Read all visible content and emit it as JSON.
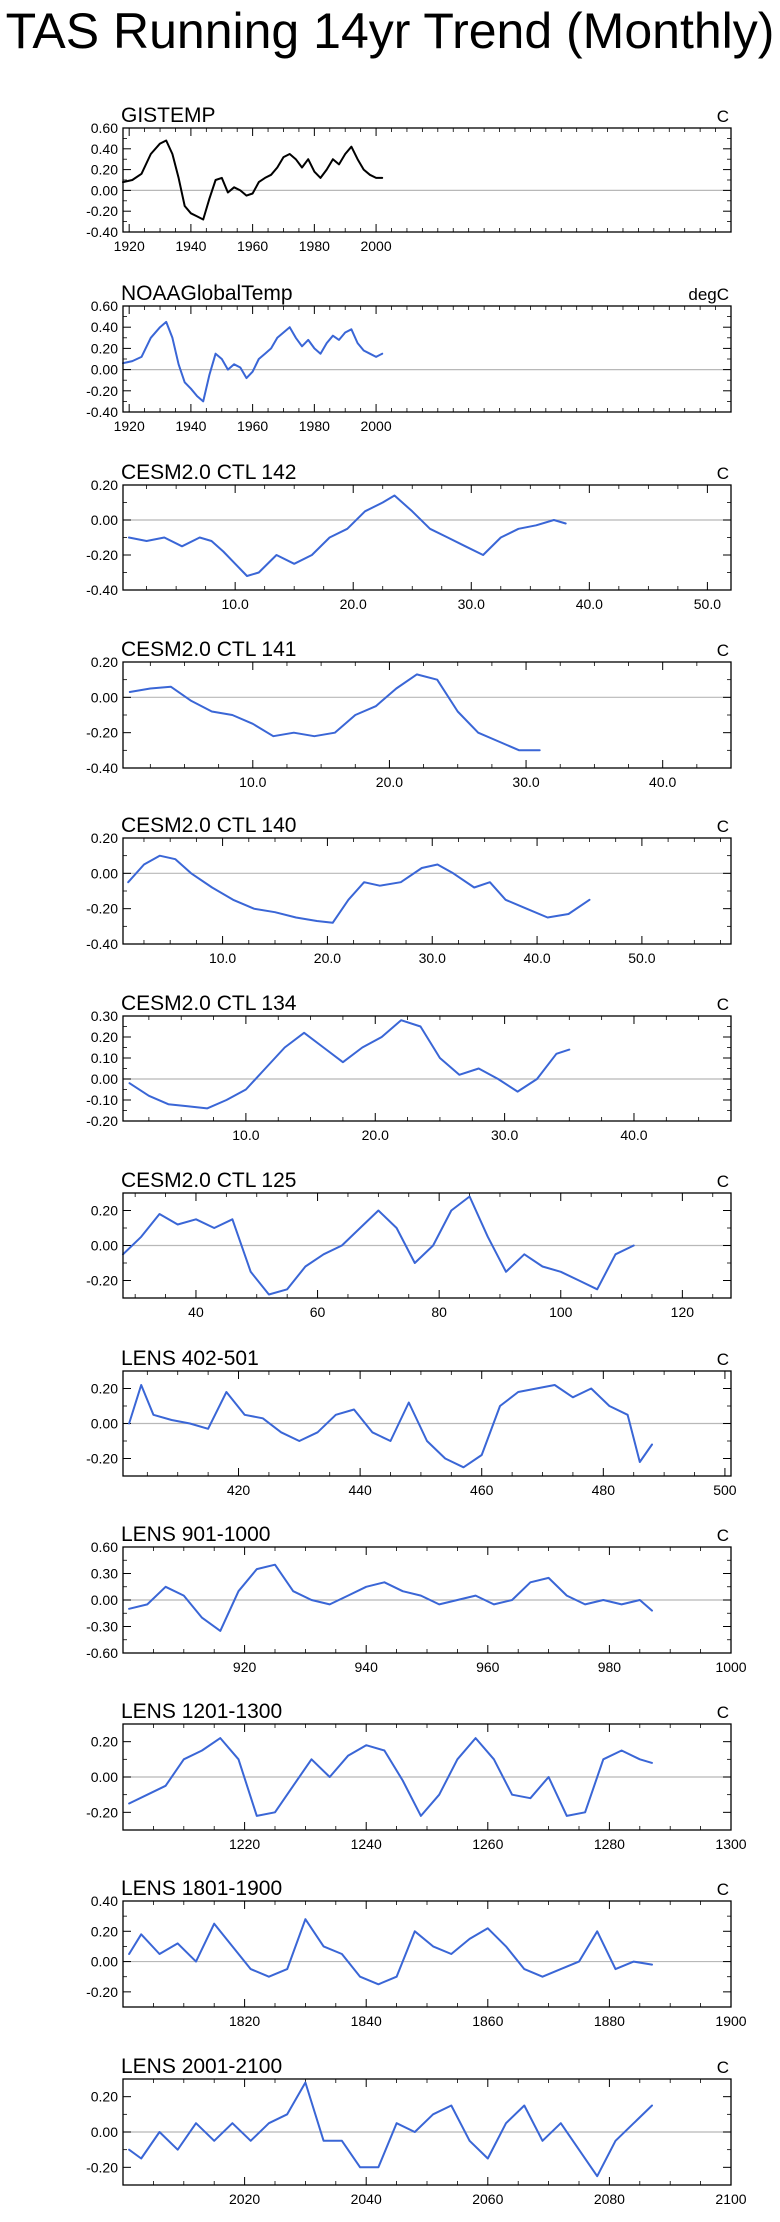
{
  "page": {
    "title": "TAS Running 14yr Trend (Monthly)"
  },
  "chart_data": [
    {
      "type": "line",
      "title": "GISTEMP",
      "units": "C",
      "color": "#000000",
      "xlim": [
        1918,
        2115
      ],
      "xticks": [
        1920,
        1940,
        1960,
        1980,
        2000
      ],
      "xtick_labels": [
        "1920",
        "1940",
        "1960",
        "1980",
        "2000"
      ],
      "ylim": [
        -0.4,
        0.6
      ],
      "yticks": [
        -0.4,
        -0.2,
        0,
        0.2,
        0.4,
        0.6
      ],
      "ytick_labels": [
        "-0.40",
        "-0.20",
        "0.00",
        "0.20",
        "0.40",
        "0.60"
      ],
      "x": [
        1918,
        1921,
        1924,
        1927,
        1930,
        1932,
        1934,
        1936,
        1938,
        1940,
        1942,
        1944,
        1946,
        1948,
        1950,
        1952,
        1954,
        1956,
        1958,
        1960,
        1962,
        1964,
        1966,
        1968,
        1970,
        1972,
        1974,
        1976,
        1978,
        1980,
        1982,
        1984,
        1986,
        1988,
        1990,
        1992,
        1994,
        1996,
        1998,
        2000,
        2002
      ],
      "y": [
        0.08,
        0.1,
        0.16,
        0.35,
        0.45,
        0.48,
        0.35,
        0.12,
        -0.15,
        -0.22,
        -0.25,
        -0.28,
        -0.08,
        0.1,
        0.12,
        -0.02,
        0.03,
        0.0,
        -0.05,
        -0.03,
        0.08,
        0.12,
        0.15,
        0.22,
        0.32,
        0.35,
        0.3,
        0.22,
        0.3,
        0.18,
        0.12,
        0.2,
        0.3,
        0.25,
        0.35,
        0.42,
        0.3,
        0.2,
        0.15,
        0.12,
        0.12
      ]
    },
    {
      "type": "line",
      "title": "NOAAGlobalTemp",
      "units": "degC",
      "color": "#3a66d6",
      "xlim": [
        1918,
        2115
      ],
      "xticks": [
        1920,
        1940,
        1960,
        1980,
        2000
      ],
      "xtick_labels": [
        "1920",
        "1940",
        "1960",
        "1980",
        "2000"
      ],
      "ylim": [
        -0.4,
        0.6
      ],
      "yticks": [
        -0.4,
        -0.2,
        0,
        0.2,
        0.4,
        0.6
      ],
      "ytick_labels": [
        "-0.40",
        "-0.20",
        "0.00",
        "0.20",
        "0.40",
        "0.60"
      ],
      "x": [
        1918,
        1921,
        1924,
        1927,
        1930,
        1932,
        1934,
        1936,
        1938,
        1940,
        1942,
        1944,
        1946,
        1948,
        1950,
        1952,
        1954,
        1956,
        1958,
        1960,
        1962,
        1964,
        1966,
        1968,
        1970,
        1972,
        1974,
        1976,
        1978,
        1980,
        1982,
        1984,
        1986,
        1988,
        1990,
        1992,
        1994,
        1996,
        1998,
        2000,
        2002
      ],
      "y": [
        0.06,
        0.08,
        0.12,
        0.3,
        0.4,
        0.45,
        0.3,
        0.05,
        -0.12,
        -0.18,
        -0.25,
        -0.3,
        -0.05,
        0.15,
        0.1,
        0.0,
        0.05,
        0.02,
        -0.08,
        -0.02,
        0.1,
        0.15,
        0.2,
        0.3,
        0.35,
        0.4,
        0.3,
        0.22,
        0.28,
        0.2,
        0.15,
        0.25,
        0.32,
        0.28,
        0.35,
        0.38,
        0.25,
        0.18,
        0.15,
        0.12,
        0.15
      ]
    },
    {
      "type": "line",
      "title": "CESM2.0 CTL 142",
      "units": "C",
      "color": "#3a66d6",
      "xlim": [
        0.5,
        52
      ],
      "xticks": [
        10,
        20,
        30,
        40,
        50
      ],
      "xtick_labels": [
        "10.0",
        "20.0",
        "30.0",
        "40.0",
        "50.0"
      ],
      "ylim": [
        -0.4,
        0.2
      ],
      "yticks": [
        -0.4,
        -0.2,
        0,
        0.2
      ],
      "ytick_labels": [
        "-0.40",
        "-0.20",
        "0.00",
        "0.20"
      ],
      "x": [
        1,
        2.5,
        4,
        5.5,
        7,
        8,
        9,
        10,
        11,
        12,
        13.5,
        15,
        16.5,
        18,
        19.5,
        21,
        22.5,
        23.5,
        25,
        26.5,
        28,
        29.5,
        31,
        32.5,
        34,
        35.5,
        37,
        38
      ],
      "y": [
        -0.1,
        -0.12,
        -0.1,
        -0.15,
        -0.1,
        -0.12,
        -0.18,
        -0.25,
        -0.32,
        -0.3,
        -0.2,
        -0.25,
        -0.2,
        -0.1,
        -0.05,
        0.05,
        0.1,
        0.14,
        0.05,
        -0.05,
        -0.1,
        -0.15,
        -0.2,
        -0.1,
        -0.05,
        -0.03,
        0.0,
        -0.02
      ]
    },
    {
      "type": "line",
      "title": "CESM2.0 CTL 141",
      "units": "C",
      "color": "#3a66d6",
      "xlim": [
        0.5,
        45
      ],
      "xticks": [
        10,
        20,
        30,
        40
      ],
      "xtick_labels": [
        "10.0",
        "20.0",
        "30.0",
        "40.0"
      ],
      "ylim": [
        -0.4,
        0.2
      ],
      "yticks": [
        -0.4,
        -0.2,
        0,
        0.2
      ],
      "ytick_labels": [
        "-0.40",
        "-0.20",
        "0.00",
        "0.20"
      ],
      "x": [
        1,
        2.5,
        4,
        5.5,
        7,
        8.5,
        10,
        11.5,
        13,
        14.5,
        16,
        17.5,
        19,
        20.5,
        22,
        23.5,
        25,
        26.5,
        28,
        29.5,
        31
      ],
      "y": [
        0.03,
        0.05,
        0.06,
        -0.02,
        -0.08,
        -0.1,
        -0.15,
        -0.22,
        -0.2,
        -0.22,
        -0.2,
        -0.1,
        -0.05,
        0.05,
        0.13,
        0.1,
        -0.08,
        -0.2,
        -0.25,
        -0.3,
        -0.3
      ]
    },
    {
      "type": "line",
      "title": "CESM2.0 CTL 140",
      "units": "C",
      "color": "#3a66d6",
      "xlim": [
        0.5,
        58.5
      ],
      "xticks": [
        10,
        20,
        30,
        40,
        50
      ],
      "xtick_labels": [
        "10.0",
        "20.0",
        "30.0",
        "40.0",
        "50.0"
      ],
      "ylim": [
        -0.4,
        0.2
      ],
      "yticks": [
        -0.4,
        -0.2,
        0,
        0.2
      ],
      "ytick_labels": [
        "-0.40",
        "-0.20",
        "0.00",
        "0.20"
      ],
      "x": [
        1,
        2.5,
        4,
        5.5,
        7,
        9,
        11,
        13,
        15,
        17,
        19,
        20.5,
        22,
        23.5,
        25,
        27,
        29,
        30.5,
        32,
        34,
        35.5,
        37,
        39,
        41,
        43,
        45
      ],
      "y": [
        -0.05,
        0.05,
        0.1,
        0.08,
        0.0,
        -0.08,
        -0.15,
        -0.2,
        -0.22,
        -0.25,
        -0.27,
        -0.28,
        -0.15,
        -0.05,
        -0.07,
        -0.05,
        0.03,
        0.05,
        0.0,
        -0.08,
        -0.05,
        -0.15,
        -0.2,
        -0.25,
        -0.23,
        -0.15
      ]
    },
    {
      "type": "line",
      "title": "CESM2.0 CTL 134",
      "units": "C",
      "color": "#3a66d6",
      "xlim": [
        0.5,
        47.5
      ],
      "xticks": [
        10,
        20,
        30,
        40
      ],
      "xtick_labels": [
        "10.0",
        "20.0",
        "30.0",
        "40.0"
      ],
      "ylim": [
        -0.2,
        0.3
      ],
      "yticks": [
        -0.2,
        -0.1,
        0,
        0.1,
        0.2,
        0.3
      ],
      "ytick_labels": [
        "-0.20",
        "-0.10",
        "0.00",
        "0.10",
        "0.20",
        "0.30"
      ],
      "x": [
        1,
        2.5,
        4,
        5.5,
        7,
        8.5,
        10,
        11.5,
        13,
        14.5,
        16,
        17.5,
        19,
        20.5,
        22,
        23.5,
        25,
        26.5,
        28,
        29.5,
        31,
        32.5,
        34,
        35
      ],
      "y": [
        -0.02,
        -0.08,
        -0.12,
        -0.13,
        -0.14,
        -0.1,
        -0.05,
        0.05,
        0.15,
        0.22,
        0.15,
        0.08,
        0.15,
        0.2,
        0.28,
        0.25,
        0.1,
        0.02,
        0.05,
        0.0,
        -0.06,
        0.0,
        0.12,
        0.14
      ]
    },
    {
      "type": "line",
      "title": "CESM2.0 CTL 125",
      "units": "C",
      "color": "#3a66d6",
      "xlim": [
        28,
        128
      ],
      "xticks": [
        40,
        60,
        80,
        100,
        120
      ],
      "xtick_labels": [
        "40",
        "60",
        "80",
        "100",
        "120"
      ],
      "ylim": [
        -0.3,
        0.3
      ],
      "yticks": [
        -0.2,
        0,
        0.2
      ],
      "ytick_labels": [
        "-0.20",
        "0.00",
        "0.20"
      ],
      "x": [
        28,
        31,
        34,
        37,
        40,
        43,
        46,
        49,
        52,
        55,
        58,
        61,
        64,
        67,
        70,
        73,
        76,
        79,
        82,
        85,
        88,
        91,
        94,
        97,
        100,
        103,
        106,
        109,
        112
      ],
      "y": [
        -0.05,
        0.05,
        0.18,
        0.12,
        0.15,
        0.1,
        0.15,
        -0.15,
        -0.28,
        -0.25,
        -0.12,
        -0.05,
        0.0,
        0.1,
        0.2,
        0.1,
        -0.1,
        0.0,
        0.2,
        0.28,
        0.05,
        -0.15,
        -0.05,
        -0.12,
        -0.15,
        -0.2,
        -0.25,
        -0.05,
        0.0
      ]
    },
    {
      "type": "line",
      "title": "LENS 402-501",
      "units": "C",
      "color": "#3a66d6",
      "xlim": [
        401,
        501
      ],
      "xticks": [
        420,
        440,
        460,
        480,
        500
      ],
      "xtick_labels": [
        "420",
        "440",
        "460",
        "480",
        "500"
      ],
      "ylim": [
        -0.3,
        0.3
      ],
      "yticks": [
        -0.2,
        0,
        0.2
      ],
      "ytick_labels": [
        "-0.20",
        "0.00",
        "0.20"
      ],
      "x": [
        402,
        404,
        406,
        409,
        412,
        415,
        418,
        421,
        424,
        427,
        430,
        433,
        436,
        439,
        442,
        445,
        448,
        451,
        454,
        457,
        460,
        463,
        466,
        469,
        472,
        475,
        478,
        481,
        484,
        486,
        488
      ],
      "y": [
        0.0,
        0.22,
        0.05,
        0.02,
        0.0,
        -0.03,
        0.18,
        0.05,
        0.03,
        -0.05,
        -0.1,
        -0.05,
        0.05,
        0.08,
        -0.05,
        -0.1,
        0.12,
        -0.1,
        -0.2,
        -0.25,
        -0.18,
        0.1,
        0.18,
        0.2,
        0.22,
        0.15,
        0.2,
        0.1,
        0.05,
        -0.22,
        -0.12
      ]
    },
    {
      "type": "line",
      "title": "LENS 901-1000",
      "units": "C",
      "color": "#3a66d6",
      "xlim": [
        900,
        1000
      ],
      "xticks": [
        920,
        940,
        960,
        980,
        1000
      ],
      "xtick_labels": [
        "920",
        "940",
        "960",
        "980",
        "1000"
      ],
      "ylim": [
        -0.6,
        0.6
      ],
      "yticks": [
        -0.6,
        -0.3,
        0,
        0.3,
        0.6
      ],
      "ytick_labels": [
        "-0.60",
        "-0.30",
        "0.00",
        "0.30",
        "0.60"
      ],
      "x": [
        901,
        904,
        907,
        910,
        913,
        916,
        919,
        922,
        925,
        928,
        931,
        934,
        937,
        940,
        943,
        946,
        949,
        952,
        955,
        958,
        961,
        964,
        967,
        970,
        973,
        976,
        979,
        982,
        985,
        987
      ],
      "y": [
        -0.1,
        -0.05,
        0.15,
        0.05,
        -0.2,
        -0.35,
        0.1,
        0.35,
        0.4,
        0.1,
        0.0,
        -0.05,
        0.05,
        0.15,
        0.2,
        0.1,
        0.05,
        -0.05,
        0.0,
        0.05,
        -0.05,
        0.0,
        0.2,
        0.25,
        0.05,
        -0.05,
        0.0,
        -0.05,
        0.0,
        -0.12
      ]
    },
    {
      "type": "line",
      "title": "LENS 1201-1300",
      "units": "C",
      "color": "#3a66d6",
      "xlim": [
        1200,
        1300
      ],
      "xticks": [
        1220,
        1240,
        1260,
        1280,
        1300
      ],
      "xtick_labels": [
        "1220",
        "1240",
        "1260",
        "1280",
        "1300"
      ],
      "ylim": [
        -0.3,
        0.3
      ],
      "yticks": [
        -0.2,
        0,
        0.2
      ],
      "ytick_labels": [
        "-0.20",
        "0.00",
        "0.20"
      ],
      "x": [
        1201,
        1204,
        1207,
        1210,
        1213,
        1216,
        1219,
        1222,
        1225,
        1228,
        1231,
        1234,
        1237,
        1240,
        1243,
        1246,
        1249,
        1252,
        1255,
        1258,
        1261,
        1264,
        1267,
        1270,
        1273,
        1276,
        1279,
        1282,
        1285,
        1287
      ],
      "y": [
        -0.15,
        -0.1,
        -0.05,
        0.1,
        0.15,
        0.22,
        0.1,
        -0.22,
        -0.2,
        -0.05,
        0.1,
        0.0,
        0.12,
        0.18,
        0.15,
        -0.02,
        -0.22,
        -0.1,
        0.1,
        0.22,
        0.1,
        -0.1,
        -0.12,
        0.0,
        -0.22,
        -0.2,
        0.1,
        0.15,
        0.1,
        0.08
      ]
    },
    {
      "type": "line",
      "title": "LENS 1801-1900",
      "units": "C",
      "color": "#3a66d6",
      "xlim": [
        1800,
        1900
      ],
      "xticks": [
        1820,
        1840,
        1860,
        1880,
        1900
      ],
      "xtick_labels": [
        "1820",
        "1840",
        "1860",
        "1880",
        "1900"
      ],
      "ylim": [
        -0.3,
        0.4
      ],
      "yticks": [
        -0.2,
        0,
        0.2,
        0.4
      ],
      "ytick_labels": [
        "-0.20",
        "0.00",
        "0.20",
        "0.40"
      ],
      "x": [
        1801,
        1803,
        1806,
        1809,
        1812,
        1815,
        1818,
        1821,
        1824,
        1827,
        1830,
        1833,
        1836,
        1839,
        1842,
        1845,
        1848,
        1851,
        1854,
        1857,
        1860,
        1863,
        1866,
        1869,
        1872,
        1875,
        1878,
        1881,
        1884,
        1887
      ],
      "y": [
        0.05,
        0.18,
        0.05,
        0.12,
        0.0,
        0.25,
        0.1,
        -0.05,
        -0.1,
        -0.05,
        0.28,
        0.1,
        0.05,
        -0.1,
        -0.15,
        -0.1,
        0.2,
        0.1,
        0.05,
        0.15,
        0.22,
        0.1,
        -0.05,
        -0.1,
        -0.05,
        0.0,
        0.2,
        -0.05,
        0.0,
        -0.02
      ]
    },
    {
      "type": "line",
      "title": "LENS 2001-2100",
      "units": "C",
      "color": "#3a66d6",
      "xlim": [
        2000,
        2100
      ],
      "xticks": [
        2020,
        2040,
        2060,
        2080,
        2100
      ],
      "xtick_labels": [
        "2020",
        "2040",
        "2060",
        "2080",
        "2100"
      ],
      "ylim": [
        -0.3,
        0.3
      ],
      "yticks": [
        -0.2,
        0,
        0.2
      ],
      "ytick_labels": [
        "-0.20",
        "0.00",
        "0.20"
      ],
      "x": [
        2001,
        2003,
        2006,
        2009,
        2012,
        2015,
        2018,
        2021,
        2024,
        2027,
        2030,
        2033,
        2036,
        2039,
        2042,
        2045,
        2048,
        2051,
        2054,
        2057,
        2060,
        2063,
        2066,
        2069,
        2072,
        2075,
        2078,
        2081,
        2084,
        2087
      ],
      "y": [
        -0.1,
        -0.15,
        0.0,
        -0.1,
        0.05,
        -0.05,
        0.05,
        -0.05,
        0.05,
        0.1,
        0.28,
        -0.05,
        -0.05,
        -0.2,
        -0.2,
        0.05,
        0.0,
        0.1,
        0.15,
        -0.05,
        -0.15,
        0.05,
        0.15,
        -0.05,
        0.05,
        -0.1,
        -0.25,
        -0.05,
        0.05,
        0.15
      ]
    }
  ]
}
